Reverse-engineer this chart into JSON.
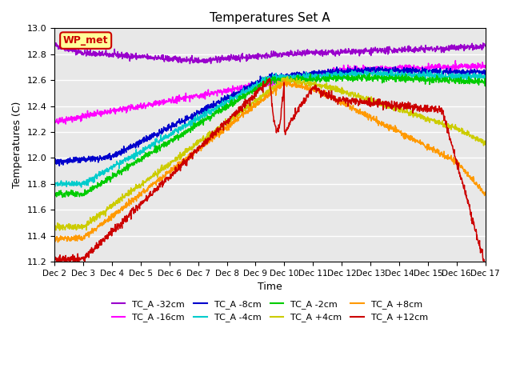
{
  "title": "Temperatures Set A",
  "xlabel": "Time",
  "ylabel": "Temperatures (C)",
  "ylim": [
    11.2,
    13.0
  ],
  "xlim": [
    0,
    15
  ],
  "yticks": [
    11.2,
    11.4,
    11.6,
    11.8,
    12.0,
    12.2,
    12.4,
    12.6,
    12.8,
    13.0
  ],
  "xtick_labels": [
    "Dec 2",
    "Dec 3",
    "Dec 4",
    "Dec 5",
    "Dec 6",
    "Dec 7",
    "Dec 8",
    "Dec 9",
    "Dec 10",
    "Dec 11",
    "Dec 12",
    "Dec 13",
    "Dec 14",
    "Dec 15",
    "Dec 16",
    "Dec 17"
  ],
  "series": [
    {
      "label": "TC_A -32cm",
      "color": "#9900cc"
    },
    {
      "label": "TC_A -16cm",
      "color": "#ff00ff"
    },
    {
      "label": "TC_A -8cm",
      "color": "#0000cc"
    },
    {
      "label": "TC_A -4cm",
      "color": "#00cccc"
    },
    {
      "label": "TC_A -2cm",
      "color": "#00cc00"
    },
    {
      "label": "TC_A +4cm",
      "color": "#cccc00"
    },
    {
      "label": "TC_A +8cm",
      "color": "#ff9900"
    },
    {
      "label": "TC_A +12cm",
      "color": "#cc0000"
    }
  ],
  "wp_met_box_color": "#ffff99",
  "wp_met_edge_color": "#cc0000",
  "wp_met_text_color": "#cc0000",
  "background_color": "#e8e8e8",
  "grid_color": "#ffffff",
  "legend_ncol": 4
}
